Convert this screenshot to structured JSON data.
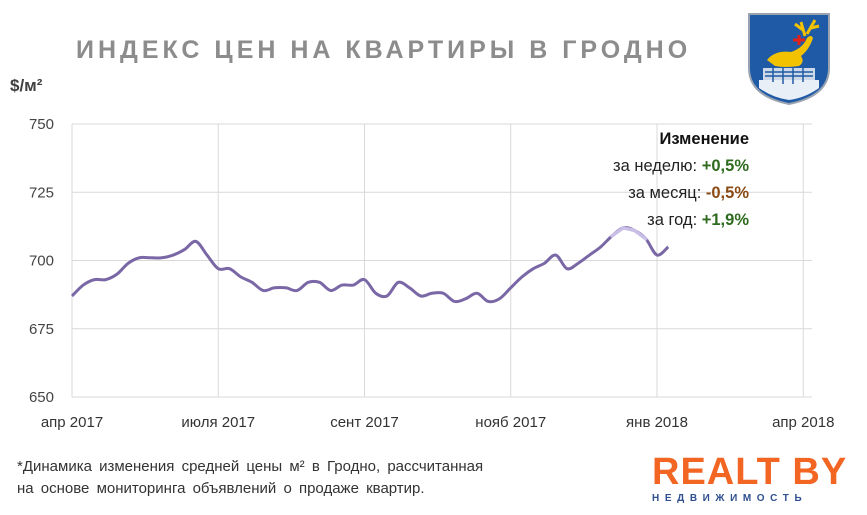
{
  "header": {
    "title": "ИНДЕКС ЦЕН НА КВАРТИРЫ В ГРОДНО",
    "unit": "$/м²"
  },
  "changes": {
    "heading": "Изменение",
    "week_label": "за неделю:",
    "week_value": "+0,5%",
    "month_label": "за месяц:",
    "month_value": "-0,5%",
    "year_label": "за год:",
    "year_value": "+1,9%"
  },
  "footnote": {
    "line1": "*Динамика изменения средней цены м² в Гродно, рассчитанная",
    "line2": "на основе мониторинга объявлений о продаже квартир."
  },
  "brand": {
    "name": "REALT BY",
    "tagline": "НЕДВИЖИМОСТЬ",
    "color": "#f26522"
  },
  "colors": {
    "line": "#7a68a6",
    "line_highlight": "#c9bfe6",
    "grid": "#d9d9d9"
  },
  "chart_data": {
    "type": "line",
    "ylabel": "$/м²",
    "ylim": [
      650,
      750
    ],
    "yticks": [
      650,
      675,
      700,
      725,
      750
    ],
    "xticks": [
      {
        "label": "апр 2017",
        "week": 0
      },
      {
        "label": "июля 2017",
        "week": 13
      },
      {
        "label": "сент 2017",
        "week": 26
      },
      {
        "label": "нояб 2017",
        "week": 39
      },
      {
        "label": "янв 2018",
        "week": 52
      },
      {
        "label": "апр 2018",
        "week": 65
      }
    ],
    "grid": true,
    "series": [
      {
        "values": [
          687,
          691,
          693,
          693,
          695,
          699,
          701,
          701,
          701,
          702,
          704,
          707,
          702,
          697,
          697,
          694,
          692,
          689,
          690,
          690,
          689,
          692,
          692,
          689,
          691,
          691,
          693,
          688,
          687,
          692,
          690,
          687,
          688,
          688,
          685,
          686,
          688,
          685,
          686,
          690,
          694,
          697,
          699,
          702,
          697,
          699,
          702,
          705,
          709,
          712,
          711,
          708,
          702,
          705
        ]
      }
    ]
  }
}
